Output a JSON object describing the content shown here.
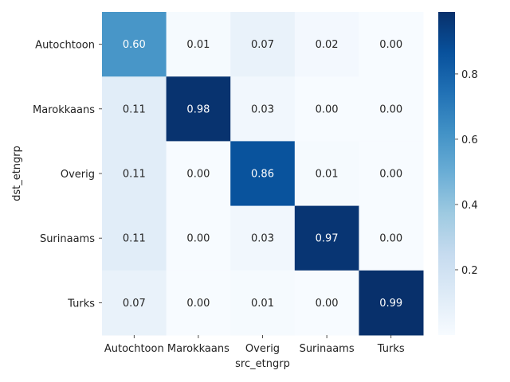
{
  "chart_data": {
    "type": "heatmap",
    "xlabel": "src_etngrp",
    "ylabel": "dst_etngrp",
    "x_categories": [
      "Autochtoon",
      "Marokkaans",
      "Overig",
      "Surinaams",
      "Turks"
    ],
    "y_categories": [
      "Autochtoon",
      "Marokkaans",
      "Overig",
      "Surinaams",
      "Turks"
    ],
    "values": [
      [
        0.6,
        0.01,
        0.07,
        0.02,
        0.0
      ],
      [
        0.11,
        0.98,
        0.03,
        0.0,
        0.0
      ],
      [
        0.11,
        0.0,
        0.86,
        0.01,
        0.0
      ],
      [
        0.11,
        0.0,
        0.03,
        0.97,
        0.0
      ],
      [
        0.07,
        0.0,
        0.01,
        0.0,
        0.99
      ]
    ],
    "value_format": "0.00",
    "colormap": "Blues",
    "colormap_stops": [
      "#f7fbff",
      "#deebf7",
      "#c6dbef",
      "#9ecae1",
      "#6baed6",
      "#4292c6",
      "#2171b5",
      "#08519c",
      "#08306b"
    ],
    "vmin": 0.0,
    "vmax": 0.99,
    "colorbar_ticks": [
      "0.2",
      "0.4",
      "0.6",
      "0.8"
    ],
    "colorbar_tick_values": [
      0.2,
      0.4,
      0.6,
      0.8
    ],
    "grid": false
  }
}
